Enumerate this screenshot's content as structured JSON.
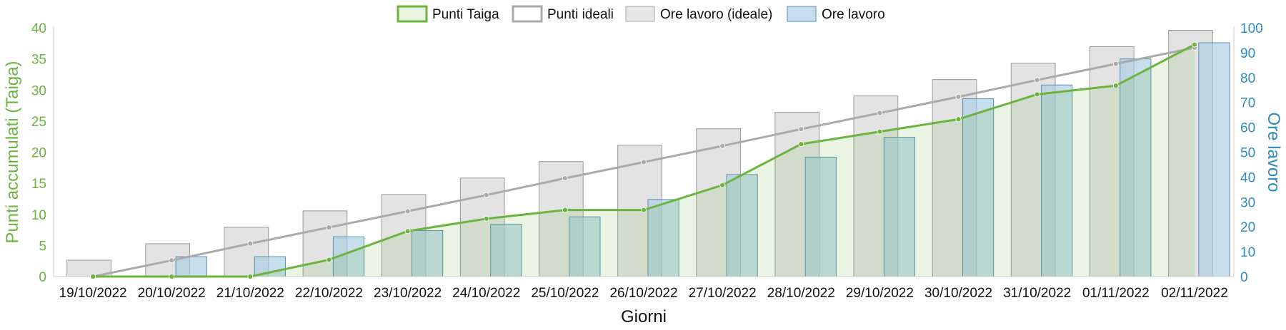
{
  "chart_data": {
    "type": "bar+line",
    "title": "",
    "xlabel": "Giorni",
    "ylabel_left": "Punti accumulati (Taiga)",
    "ylabel_right": "Ore lavoro",
    "ylim_left": [
      0,
      40
    ],
    "ylim_right": [
      0,
      100
    ],
    "yticks_left": [
      0,
      5,
      10,
      15,
      20,
      25,
      30,
      35,
      40
    ],
    "yticks_right": [
      0,
      10,
      20,
      30,
      40,
      50,
      60,
      70,
      80,
      90,
      100
    ],
    "grid": false,
    "legend_position": "top-center",
    "categories": [
      "19/10/2022",
      "20/10/2022",
      "21/10/2022",
      "22/10/2022",
      "23/10/2022",
      "24/10/2022",
      "25/10/2022",
      "26/10/2022",
      "27/10/2022",
      "28/10/2022",
      "29/10/2022",
      "30/10/2022",
      "31/10/2022",
      "01/11/2022",
      "02/11/2022"
    ],
    "series": [
      {
        "name": "Punti Taiga",
        "kind": "line",
        "axis": "left",
        "color": "#6db33f",
        "fill": true,
        "values": [
          0,
          0,
          0,
          2.7,
          7.3,
          9.3,
          10.7,
          10.7,
          14.7,
          21.3,
          23.3,
          25.3,
          29.3,
          30.7,
          37.3
        ]
      },
      {
        "name": "Punti ideali",
        "kind": "line",
        "axis": "left",
        "color": "#aaaaaa",
        "fill": false,
        "values": [
          0,
          2.6,
          5.3,
          7.9,
          10.5,
          13.1,
          15.8,
          18.4,
          21.0,
          23.7,
          26.3,
          28.9,
          31.6,
          34.2,
          36.8
        ]
      },
      {
        "name": "Ore lavoro (ideale)",
        "kind": "bar",
        "axis": "right",
        "color": "#d9d9d9",
        "values": [
          6.6,
          13.2,
          19.8,
          26.4,
          33.0,
          39.6,
          46.2,
          52.8,
          59.4,
          66.0,
          72.6,
          79.2,
          85.8,
          92.4,
          99.0
        ]
      },
      {
        "name": "Ore lavoro",
        "kind": "bar",
        "axis": "right",
        "color": "#a9cce3",
        "values": [
          0,
          8,
          8,
          16,
          18.5,
          21,
          24,
          31,
          41,
          48,
          56,
          71.5,
          77,
          87.5,
          94
        ]
      }
    ]
  }
}
